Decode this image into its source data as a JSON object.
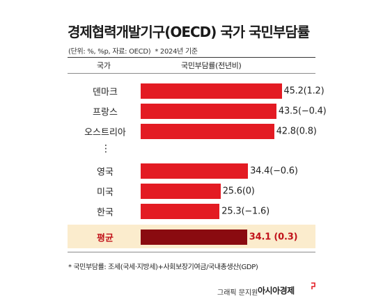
{
  "header": {
    "title": "경제협력개발기구(OECD) 국가 국민부담률",
    "subtitle": "(단위: %, %p, 자료: OECD)",
    "subtitle_note": "* 2024년 기준"
  },
  "chart_data": {
    "type": "bar",
    "orientation": "horizontal",
    "column_headers": {
      "category": "국가",
      "value": "국민부담률(전년비)"
    },
    "categories": [
      "덴마크",
      "프랑스",
      "오스트리아",
      "영국",
      "미국",
      "한국",
      "평균"
    ],
    "values": [
      45.2,
      43.5,
      42.8,
      34.4,
      25.6,
      25.3,
      34.1
    ],
    "changes": [
      "1.2",
      "−0.4",
      "0.8",
      "−0.6",
      "0",
      "−1.6",
      "0.3"
    ],
    "value_labels": [
      "45.2(1.2)",
      "43.5(−0.4)",
      "42.8(0.8)",
      "34.4(−0.6)",
      "25.6(0)",
      "25.3(−1.6)",
      "34.1 (0.3)"
    ],
    "highlight_category": "평균",
    "gap_after_index": 2,
    "gap_marker": "⋮",
    "colors": {
      "bar": "#e31b23",
      "highlight_bar": "#8a0b10",
      "highlight_band": "#fbeccd",
      "highlight_text": "#c1121a"
    },
    "xlim": [
      0,
      50
    ],
    "grid": false,
    "legend": "none"
  },
  "footnote": "* 국민부담률: 조세(국세·지방세)+사회보장기여금/국내총생산(GDP)",
  "credit": {
    "graphic_by": "그래픽 문지원",
    "brand": "아시아경제"
  }
}
